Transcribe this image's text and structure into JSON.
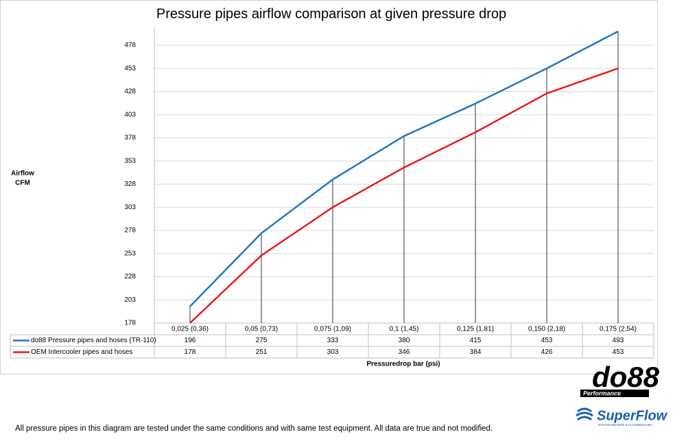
{
  "chart_data": {
    "type": "line",
    "title": "Pressure pipes airflow comparison at given pressure drop",
    "y_label_lines": [
      "Airflow",
      "CFM"
    ],
    "x_label": "Pressuredrop bar (psi)",
    "categories": [
      "0,025 (0,36)",
      "0,05 (0,73)",
      "0,075 (1,09)",
      "0,1 (1,45)",
      "0,125 (1,81)",
      "0,150 (2,18)",
      "0,175 (2,54)"
    ],
    "series": [
      {
        "name": "do88 Pressure pipes and hoses (TR-110)",
        "color": "#1f77c4",
        "values": [
          196,
          275,
          333,
          380,
          415,
          453,
          493
        ]
      },
      {
        "name": "OEM Intercooler pipes and hoses",
        "color": "#e8191d",
        "values": [
          178,
          251,
          303,
          346,
          384,
          426,
          453
        ]
      }
    ],
    "ylim": [
      178,
      498
    ],
    "yticks": [
      178,
      203,
      228,
      253,
      278,
      303,
      328,
      353,
      378,
      403,
      428,
      453,
      478
    ],
    "grid": true,
    "drop_lines": true,
    "data_table": true,
    "footnote": "All pressure pipes in this diagram are tested under the same conditions and with same test equipment. All data are true and not modified.",
    "logos": {
      "do88": "do88",
      "do88_sub": "Performance",
      "superflow": "SuperFlow",
      "superflow_sub": "DYNAMOMETERS & FLOWBENCHES"
    }
  }
}
